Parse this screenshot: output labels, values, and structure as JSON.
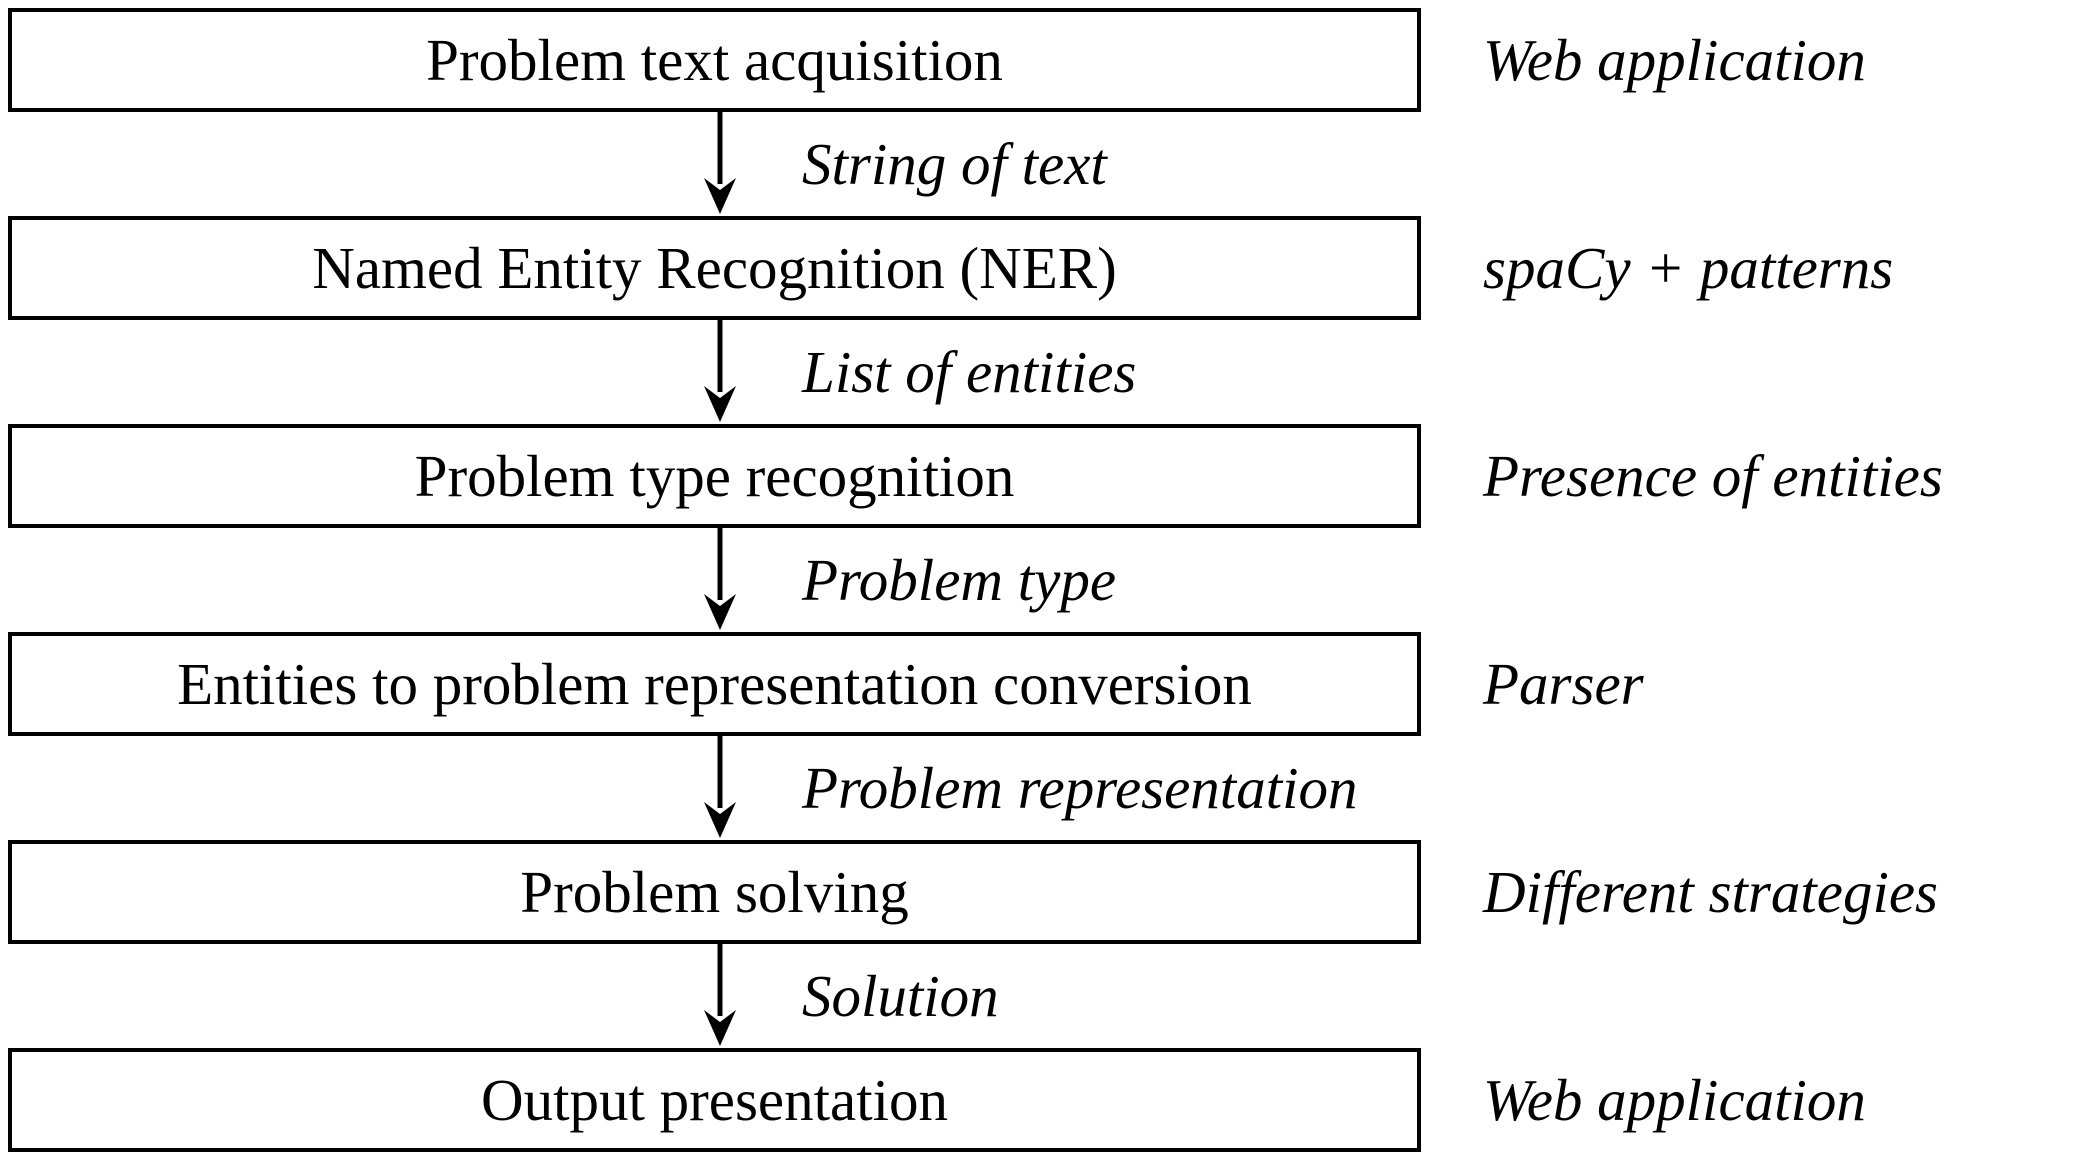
{
  "stages": [
    {
      "label": "Problem text acquisition",
      "tool": "Web application"
    },
    {
      "label": "Named Entity Recognition (NER)",
      "tool": "spaCy + patterns"
    },
    {
      "label": "Problem type recognition",
      "tool": "Presence of entities"
    },
    {
      "label": "Entities to problem representation conversion",
      "tool": "Parser"
    },
    {
      "label": "Problem solving",
      "tool": "Different strategies"
    },
    {
      "label": "Output presentation",
      "tool": "Web application"
    }
  ],
  "flows": [
    {
      "label": "String of text"
    },
    {
      "label": "List of entities"
    },
    {
      "label": "Problem type"
    },
    {
      "label": "Problem representation"
    },
    {
      "label": "Solution"
    }
  ]
}
